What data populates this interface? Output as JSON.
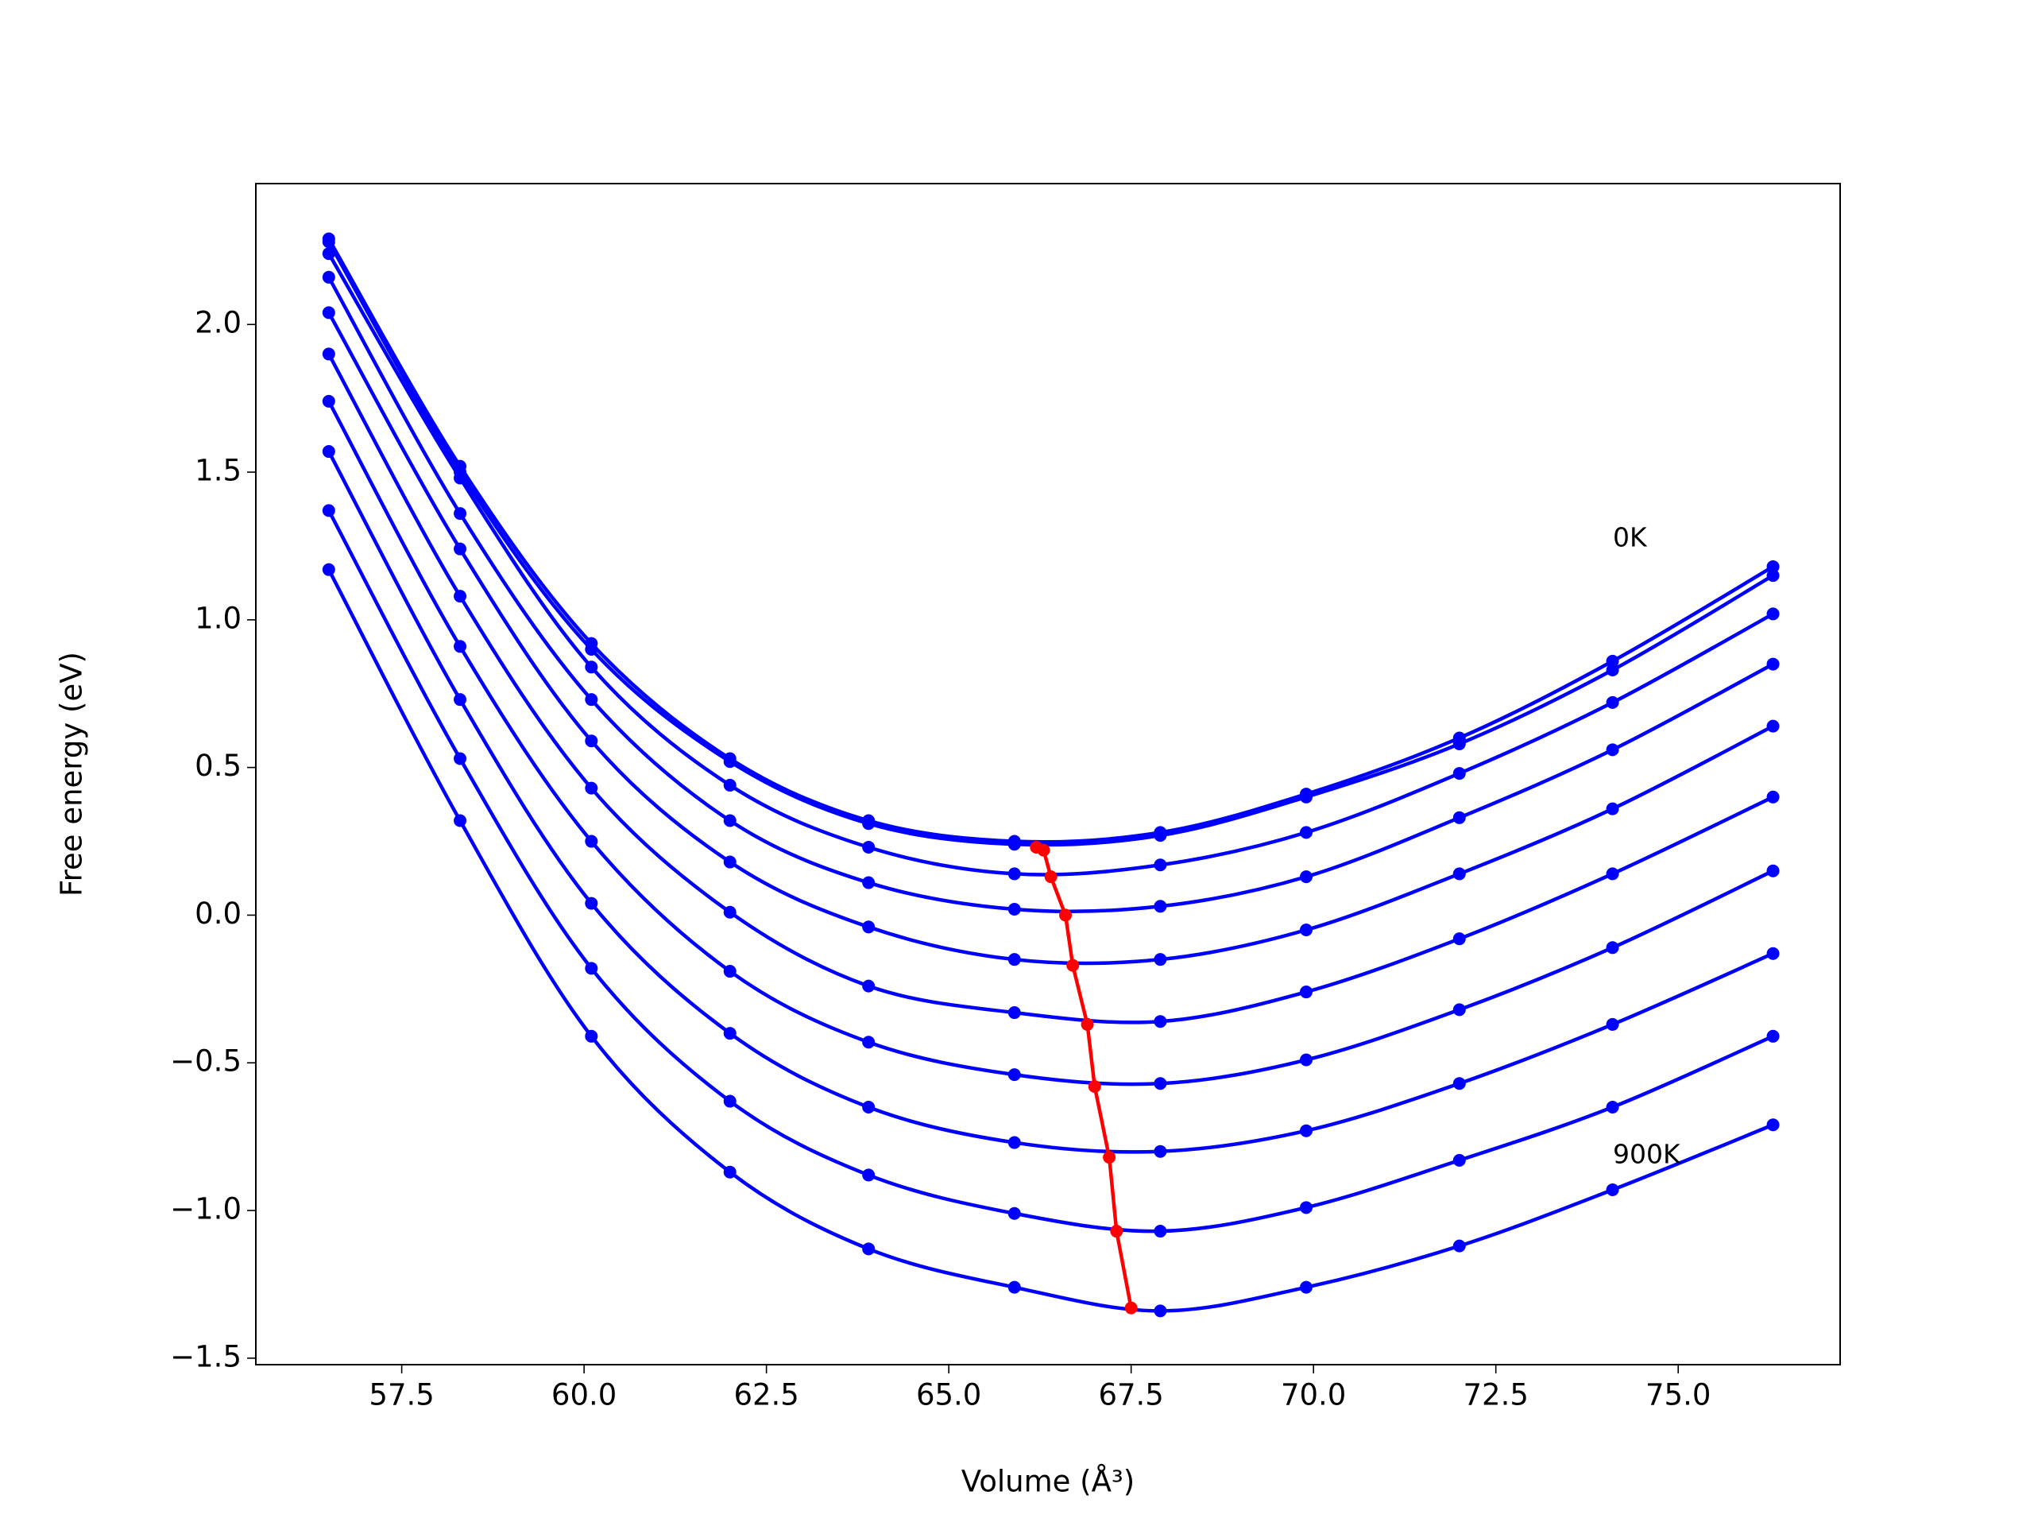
{
  "chart_data": {
    "type": "line",
    "xlabel": "Volume (Å³)",
    "ylabel": "Free energy (eV)",
    "x": [
      56.5,
      58.3,
      60.1,
      62.0,
      63.9,
      65.9,
      67.9,
      69.9,
      72.0,
      74.1,
      76.3
    ],
    "series": [
      {
        "color": "#0000ff",
        "values": [
          2.29,
          1.52,
          0.92,
          0.53,
          0.32,
          0.25,
          0.28,
          0.41,
          0.6,
          0.86,
          1.18
        ]
      },
      {
        "color": "#0000ff",
        "values": [
          2.28,
          1.5,
          0.9,
          0.52,
          0.31,
          0.24,
          0.27,
          0.4,
          0.58,
          0.83,
          1.15
        ]
      },
      {
        "color": "#0000ff",
        "values": [
          2.24,
          1.48,
          0.84,
          0.44,
          0.23,
          0.14,
          0.17,
          0.28,
          0.48,
          0.72,
          1.02
        ]
      },
      {
        "color": "#0000ff",
        "values": [
          2.16,
          1.36,
          0.73,
          0.32,
          0.11,
          0.02,
          0.03,
          0.13,
          0.33,
          0.56,
          0.85
        ]
      },
      {
        "color": "#0000ff",
        "values": [
          2.04,
          1.24,
          0.59,
          0.18,
          -0.04,
          -0.15,
          -0.15,
          -0.05,
          0.14,
          0.36,
          0.64
        ]
      },
      {
        "color": "#0000ff",
        "values": [
          1.9,
          1.08,
          0.43,
          0.01,
          -0.24,
          -0.33,
          -0.36,
          -0.26,
          -0.08,
          0.14,
          0.4
        ]
      },
      {
        "color": "#0000ff",
        "values": [
          1.74,
          0.91,
          0.25,
          -0.19,
          -0.43,
          -0.54,
          -0.57,
          -0.49,
          -0.32,
          -0.11,
          0.15
        ]
      },
      {
        "color": "#0000ff",
        "values": [
          1.57,
          0.73,
          0.04,
          -0.4,
          -0.65,
          -0.77,
          -0.8,
          -0.73,
          -0.57,
          -0.37,
          -0.13
        ]
      },
      {
        "color": "#0000ff",
        "values": [
          1.37,
          0.53,
          -0.18,
          -0.63,
          -0.88,
          -1.01,
          -1.07,
          -0.99,
          -0.83,
          -0.65,
          -0.41
        ]
      },
      {
        "color": "#0000ff",
        "values": [
          1.17,
          0.32,
          -0.41,
          -0.87,
          -1.13,
          -1.26,
          -1.34,
          -1.26,
          -1.12,
          -0.93,
          -0.71
        ]
      },
      {
        "color": "#ff0000",
        "x": [
          66.2,
          66.3,
          66.4,
          66.6,
          66.7,
          66.9,
          67.0,
          67.2,
          67.3,
          67.5
        ],
        "values": [
          0.23,
          0.22,
          0.13,
          0.0,
          -0.17,
          -0.37,
          -0.58,
          -0.82,
          -1.07,
          -1.33
        ]
      }
    ],
    "annotations": [
      "0K",
      "900K"
    ],
    "xlim": [
      55.5,
      77.22
    ],
    "xticks": [
      57.5,
      {
        "value": 60,
        "label": "60.0"
      },
      62.5,
      {
        "value": 65,
        "label": "65.0"
      },
      67.5,
      {
        "value": 70,
        "label": "70.0"
      },
      72.5,
      {
        "value": 75,
        "label": "75.0"
      }
    ],
    "ylim": [
      -1.522,
      2.477
    ],
    "yticks": [
      {
        "value": -1.5,
        "label": "−1.5"
      },
      {
        "value": -1,
        "label": "−1.0"
      },
      {
        "value": -0.5,
        "label": "−0.5"
      },
      {
        "value": 0,
        "label": "0.0"
      },
      0.5,
      {
        "value": 1,
        "label": "1.0"
      },
      1.5,
      {
        "value": 2,
        "label": "2.0"
      }
    ],
    "markers": true,
    "grid": false
  }
}
